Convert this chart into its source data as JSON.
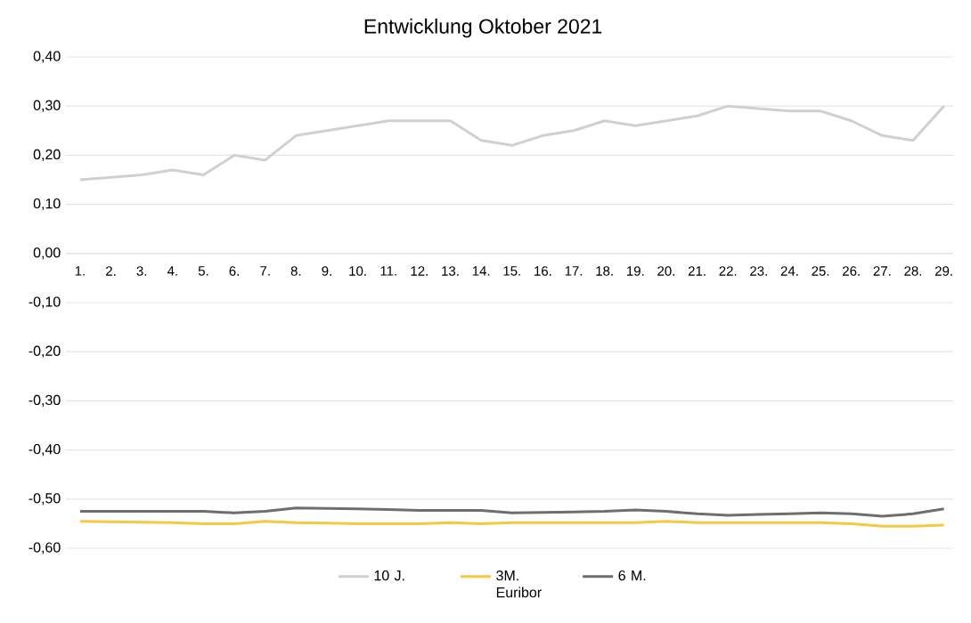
{
  "chart_data": {
    "type": "line",
    "title": "Entwicklung Oktober 2021",
    "categories": [
      "1.",
      "2.",
      "3.",
      "4.",
      "5.",
      "6.",
      "7.",
      "8.",
      "9.",
      "10.",
      "11.",
      "12.",
      "13.",
      "14.",
      "15.",
      "16.",
      "17.",
      "18.",
      "19.",
      "20.",
      "21.",
      "22.",
      "23.",
      "24.",
      "25.",
      "26.",
      "27.",
      "28.",
      "29."
    ],
    "series": [
      {
        "name": "10 J.",
        "color": "#d0d0d0",
        "values": [
          0.15,
          0.155,
          0.16,
          0.17,
          0.16,
          0.2,
          0.19,
          0.24,
          0.25,
          0.26,
          0.27,
          0.27,
          0.27,
          0.23,
          0.22,
          0.24,
          0.25,
          0.27,
          0.26,
          0.27,
          0.28,
          0.3,
          0.295,
          0.29,
          0.29,
          0.27,
          0.24,
          0.23,
          0.3
        ]
      },
      {
        "name": "3M. Euribor",
        "color": "#f5c842",
        "values": [
          -0.545,
          -0.546,
          -0.547,
          -0.548,
          -0.55,
          -0.55,
          -0.545,
          -0.548,
          -0.549,
          -0.55,
          -0.55,
          -0.55,
          -0.548,
          -0.55,
          -0.548,
          -0.548,
          -0.548,
          -0.548,
          -0.548,
          -0.545,
          -0.548,
          -0.548,
          -0.548,
          -0.548,
          -0.548,
          -0.55,
          -0.555,
          -0.555,
          -0.553
        ]
      },
      {
        "name": "6 M.",
        "color": "#6e6e6e",
        "values": [
          -0.525,
          -0.525,
          -0.525,
          -0.525,
          -0.525,
          -0.528,
          -0.525,
          -0.518,
          -0.519,
          -0.52,
          -0.521,
          -0.523,
          -0.523,
          -0.523,
          -0.528,
          -0.527,
          -0.526,
          -0.525,
          -0.522,
          -0.525,
          -0.53,
          -0.533,
          -0.531,
          -0.53,
          -0.528,
          -0.53,
          -0.535,
          -0.53,
          -0.52
        ]
      }
    ],
    "ylim": [
      -0.6,
      0.4
    ],
    "yticks": [
      {
        "value": -0.6,
        "label": "-0,60"
      },
      {
        "value": -0.5,
        "label": "-0,50"
      },
      {
        "value": -0.4,
        "label": "-0,40"
      },
      {
        "value": -0.3,
        "label": "-0,30"
      },
      {
        "value": -0.2,
        "label": "-0,20"
      },
      {
        "value": -0.1,
        "label": "-0,10"
      },
      {
        "value": 0,
        "label": "0,00"
      },
      {
        "value": 0.1,
        "label": "0,10"
      },
      {
        "value": 0.2,
        "label": "0,20"
      },
      {
        "value": 0.3,
        "label": "0,30"
      },
      {
        "value": 0.4,
        "label": "0,40"
      }
    ],
    "grid": "y",
    "legend": "bottom",
    "marker": "none",
    "line_style": "solid"
  }
}
